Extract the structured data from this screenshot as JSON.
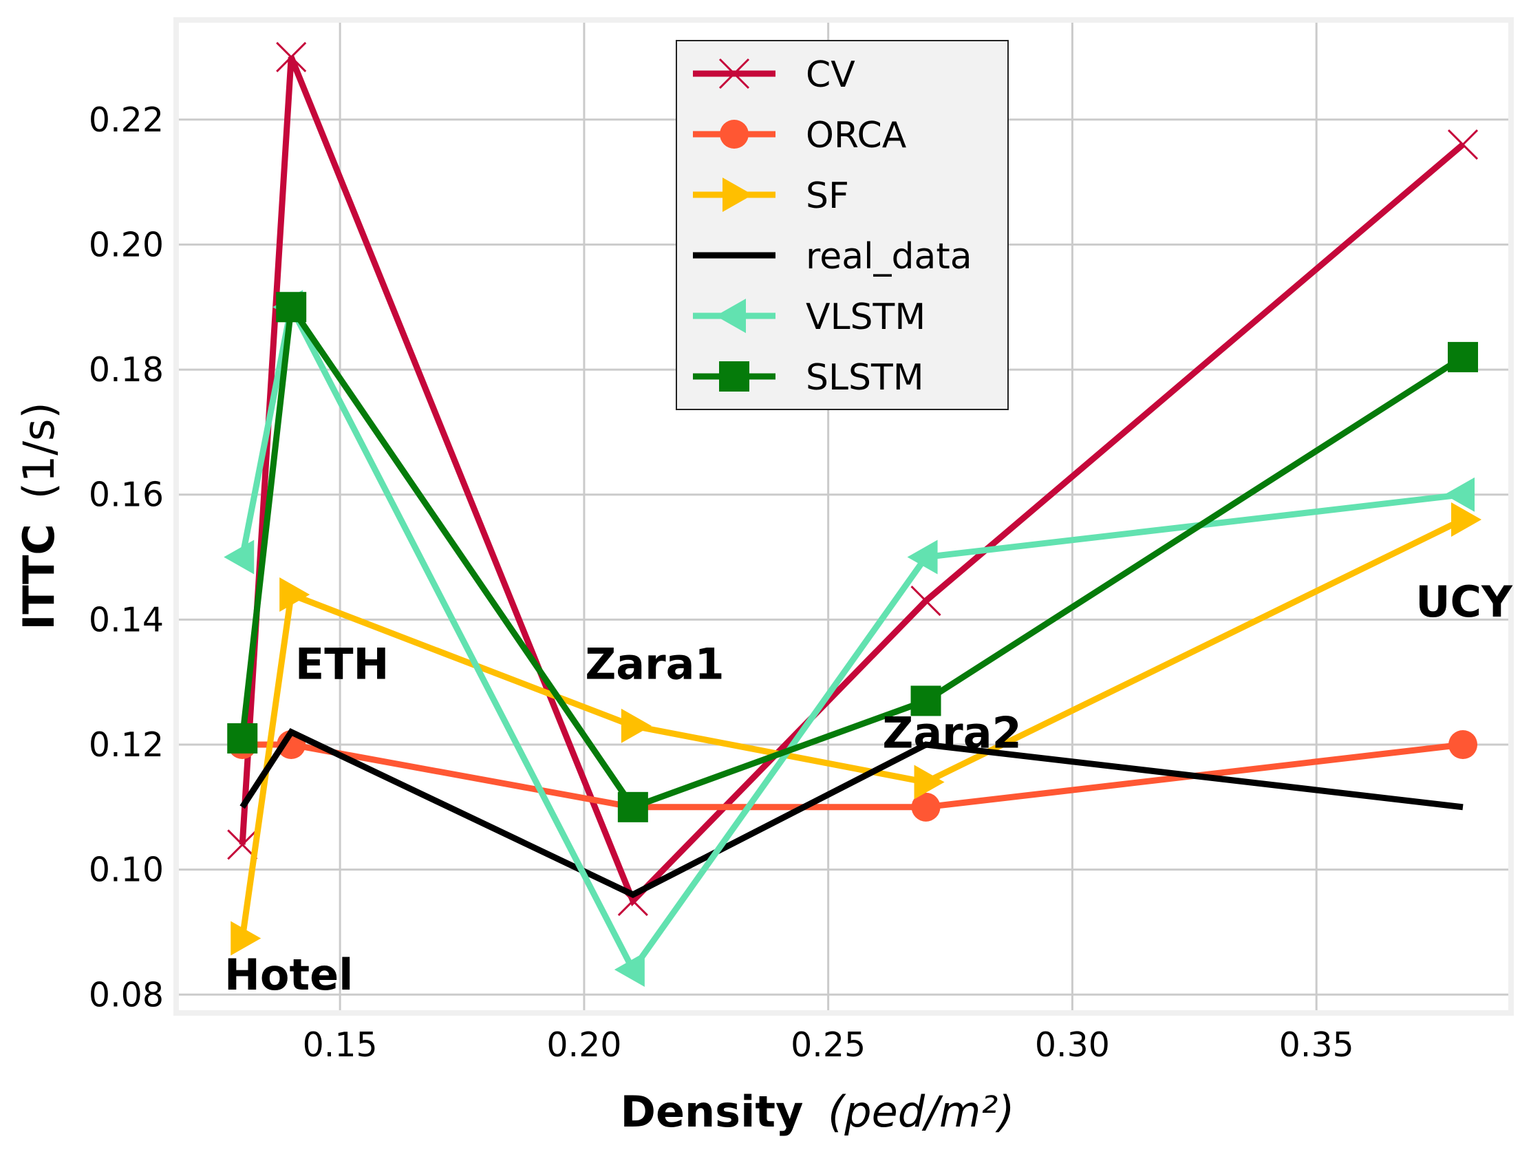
{
  "chart_data": {
    "type": "line",
    "title": "",
    "xlabel": {
      "bold": "Density",
      "unit": "(ped/m²)"
    },
    "ylabel": {
      "bold": "ITTC",
      "unit": "(1/s)"
    },
    "xlim": [
      0.117,
      0.3893
    ],
    "ylim": [
      0.0775,
      0.2355
    ],
    "xticks": [
      0.15,
      0.2,
      0.25,
      0.3,
      0.35
    ],
    "xtick_labels": [
      "0.15",
      "0.20",
      "0.25",
      "0.30",
      "0.35"
    ],
    "yticks": [
      0.08,
      0.1,
      0.12,
      0.14,
      0.16,
      0.18,
      0.2,
      0.22
    ],
    "ytick_labels": [
      "0.08",
      "0.10",
      "0.12",
      "0.14",
      "0.16",
      "0.18",
      "0.20",
      "0.22"
    ],
    "grid": true,
    "legend_position": "top-center",
    "x": [
      0.13,
      0.14,
      0.21,
      0.27,
      0.38
    ],
    "series": [
      {
        "name": "CV",
        "color": "#c5073a",
        "marker": "x",
        "values": [
          0.104,
          0.23,
          0.095,
          0.143,
          0.216
        ]
      },
      {
        "name": "ORCA",
        "color": "#ff5733",
        "marker": "circle",
        "values": [
          0.12,
          0.12,
          0.11,
          0.11,
          0.12
        ]
      },
      {
        "name": "SF",
        "color": "#ffbf00",
        "marker": "triangle-right",
        "values": [
          0.089,
          0.144,
          0.123,
          0.114,
          0.156
        ]
      },
      {
        "name": "real_data",
        "color": "#000000",
        "marker": "none",
        "values": [
          0.11,
          0.122,
          0.096,
          0.12,
          0.11
        ]
      },
      {
        "name": "VLSTM",
        "color": "#62e2b0",
        "marker": "triangle-left",
        "values": [
          0.15,
          0.19,
          0.084,
          0.15,
          0.16
        ]
      },
      {
        "name": "SLSTM",
        "color": "#057b0a",
        "marker": "square",
        "values": [
          0.121,
          0.19,
          0.11,
          0.127,
          0.182
        ]
      }
    ],
    "annotations": [
      {
        "text": "Hotel",
        "x": 0.1263,
        "y": 0.0808
      },
      {
        "text": "ETH",
        "x": 0.1408,
        "y": 0.1305
      },
      {
        "text": "Zara1",
        "x": 0.2002,
        "y": 0.1305
      },
      {
        "text": "Zara2",
        "x": 0.2611,
        "y": 0.1195
      },
      {
        "text": "UCY",
        "x": 0.3703,
        "y": 0.1405
      }
    ]
  }
}
